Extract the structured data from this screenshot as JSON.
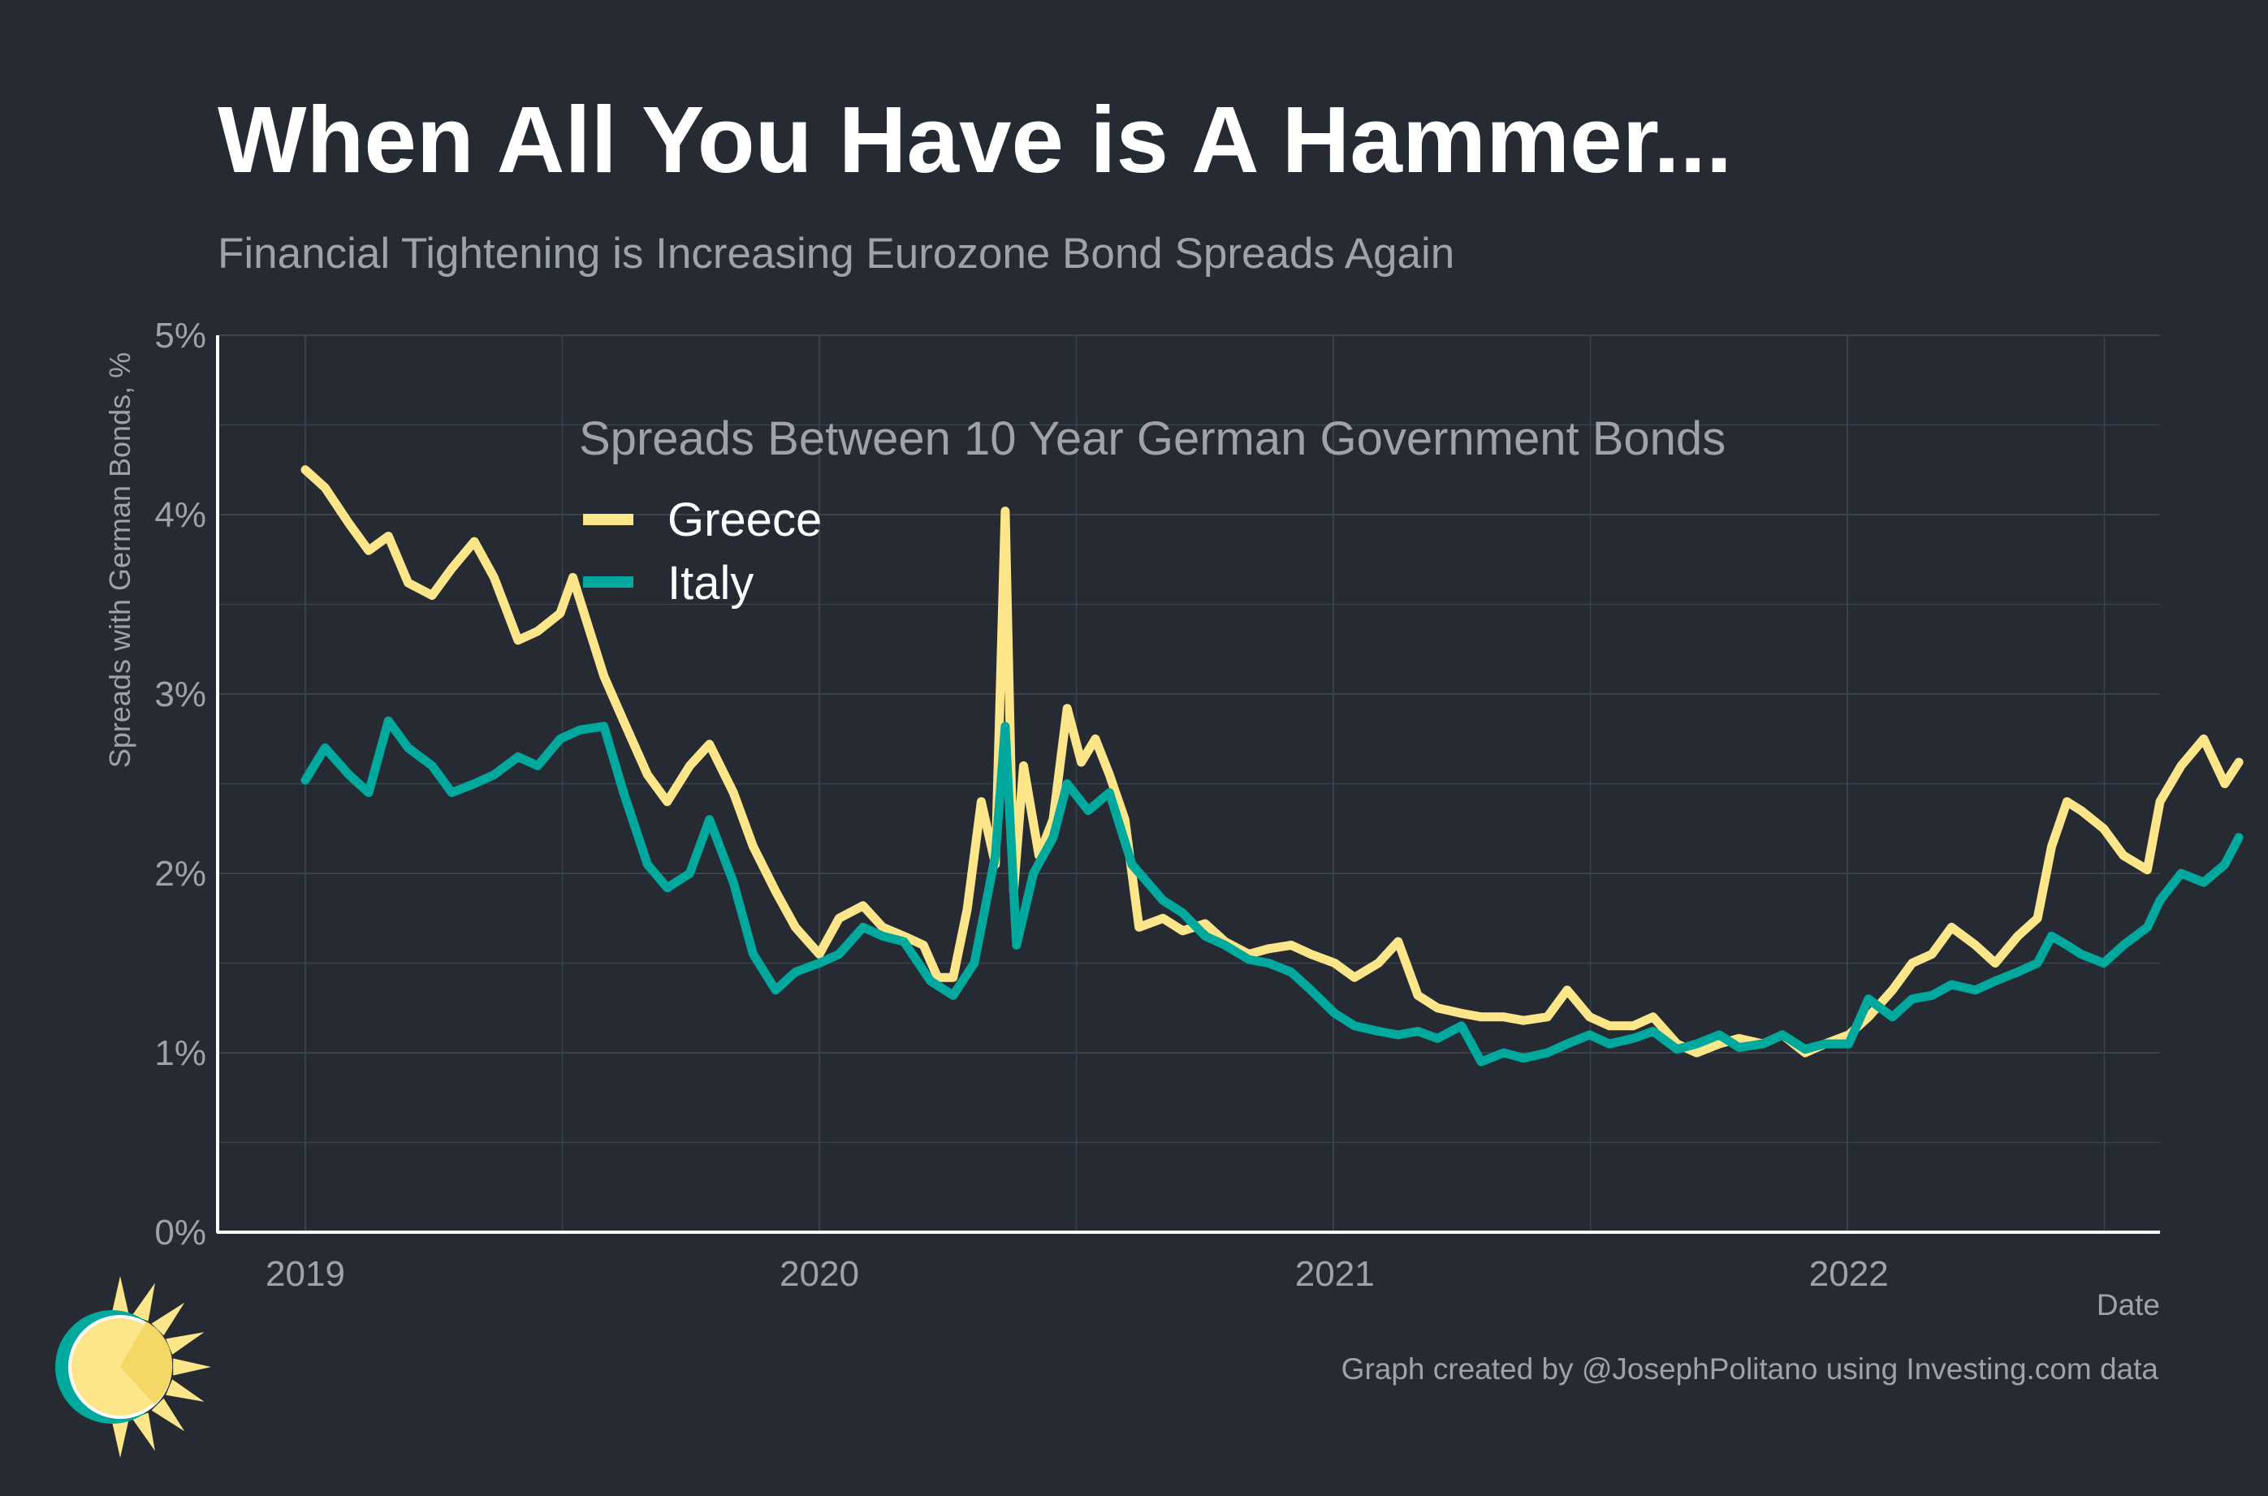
{
  "title": "When All You Have is A Hammer...",
  "subtitle": "Financial Tightening is Increasing Eurozone Bond Spreads Again",
  "credit": "Graph created by @JosephPolitano using Investing.com data",
  "colors": {
    "background": "#252a33",
    "grid": "#3c424c",
    "axis": "#ffffff",
    "muted_text": "#9ea3ab",
    "greece": "#fde68a",
    "italy": "#00a99d",
    "logo_sun": "#fde68a",
    "logo_ring": "#00a99d"
  },
  "logo": {
    "icon": "sun-logo-icon"
  },
  "chart_data": {
    "type": "line",
    "title": "",
    "xlabel": "Date",
    "ylabel": "Spreads with German Bonds, %",
    "ylim": [
      0,
      5
    ],
    "xlim": [
      "2018-11-14",
      "2022-08-16"
    ],
    "yticks": [
      0,
      1,
      2,
      3,
      4,
      5
    ],
    "ytick_labels": [
      "0%",
      "1%",
      "2%",
      "3%",
      "4%",
      "5%"
    ],
    "xticks": [
      "2019-01-01",
      "2020-01-01",
      "2021-01-01",
      "2022-01-01"
    ],
    "xtick_labels": [
      "2019",
      "2020",
      "2021",
      "2022"
    ],
    "grid": true,
    "legend": {
      "title": "Spreads Between 10 Year German Government Bonds",
      "position": "top-center",
      "entries": [
        "Greece",
        "Italy"
      ]
    },
    "series": [
      {
        "name": "Greece",
        "color": "#fde68a",
        "points": [
          [
            "2019-01-01",
            4.25
          ],
          [
            "2019-01-15",
            4.15
          ],
          [
            "2019-02-01",
            3.95
          ],
          [
            "2019-02-15",
            3.8
          ],
          [
            "2019-03-01",
            3.88
          ],
          [
            "2019-03-15",
            3.62
          ],
          [
            "2019-04-01",
            3.55
          ],
          [
            "2019-04-15",
            3.7
          ],
          [
            "2019-05-01",
            3.85
          ],
          [
            "2019-05-15",
            3.65
          ],
          [
            "2019-06-01",
            3.3
          ],
          [
            "2019-06-15",
            3.35
          ],
          [
            "2019-07-01",
            3.45
          ],
          [
            "2019-07-10",
            3.65
          ],
          [
            "2019-07-20",
            3.4
          ],
          [
            "2019-08-01",
            3.1
          ],
          [
            "2019-08-15",
            2.85
          ],
          [
            "2019-09-01",
            2.55
          ],
          [
            "2019-09-15",
            2.4
          ],
          [
            "2019-10-01",
            2.6
          ],
          [
            "2019-10-15",
            2.72
          ],
          [
            "2019-11-01",
            2.45
          ],
          [
            "2019-11-15",
            2.15
          ],
          [
            "2019-12-01",
            1.9
          ],
          [
            "2019-12-15",
            1.7
          ],
          [
            "2020-01-01",
            1.55
          ],
          [
            "2020-01-15",
            1.75
          ],
          [
            "2020-02-01",
            1.82
          ],
          [
            "2020-02-15",
            1.7
          ],
          [
            "2020-03-01",
            1.65
          ],
          [
            "2020-03-15",
            1.6
          ],
          [
            "2020-03-25",
            1.42
          ],
          [
            "2020-04-05",
            1.42
          ],
          [
            "2020-04-15",
            1.8
          ],
          [
            "2020-04-25",
            2.4
          ],
          [
            "2020-05-05",
            2.05
          ],
          [
            "2020-05-12",
            4.02
          ],
          [
            "2020-05-18",
            1.9
          ],
          [
            "2020-05-25",
            2.6
          ],
          [
            "2020-06-05",
            2.1
          ],
          [
            "2020-06-15",
            2.3
          ],
          [
            "2020-06-25",
            2.92
          ],
          [
            "2020-07-05",
            2.62
          ],
          [
            "2020-07-15",
            2.75
          ],
          [
            "2020-07-25",
            2.55
          ],
          [
            "2020-08-05",
            2.3
          ],
          [
            "2020-08-15",
            1.7
          ],
          [
            "2020-09-01",
            1.75
          ],
          [
            "2020-09-15",
            1.68
          ],
          [
            "2020-10-01",
            1.72
          ],
          [
            "2020-10-15",
            1.62
          ],
          [
            "2020-11-01",
            1.55
          ],
          [
            "2020-11-15",
            1.58
          ],
          [
            "2020-12-01",
            1.6
          ],
          [
            "2020-12-15",
            1.55
          ],
          [
            "2021-01-01",
            1.5
          ],
          [
            "2021-01-15",
            1.42
          ],
          [
            "2021-02-01",
            1.5
          ],
          [
            "2021-02-15",
            1.62
          ],
          [
            "2021-03-01",
            1.32
          ],
          [
            "2021-03-15",
            1.25
          ],
          [
            "2021-04-01",
            1.22
          ],
          [
            "2021-04-15",
            1.2
          ],
          [
            "2021-05-01",
            1.2
          ],
          [
            "2021-05-15",
            1.18
          ],
          [
            "2021-06-01",
            1.2
          ],
          [
            "2021-06-15",
            1.35
          ],
          [
            "2021-07-01",
            1.2
          ],
          [
            "2021-07-15",
            1.15
          ],
          [
            "2021-08-01",
            1.15
          ],
          [
            "2021-08-15",
            1.2
          ],
          [
            "2021-09-01",
            1.05
          ],
          [
            "2021-09-15",
            1.0
          ],
          [
            "2021-10-01",
            1.05
          ],
          [
            "2021-10-15",
            1.08
          ],
          [
            "2021-11-01",
            1.05
          ],
          [
            "2021-11-15",
            1.1
          ],
          [
            "2021-12-01",
            1.0
          ],
          [
            "2021-12-15",
            1.05
          ],
          [
            "2022-01-01",
            1.1
          ],
          [
            "2022-01-15",
            1.2
          ],
          [
            "2022-02-01",
            1.35
          ],
          [
            "2022-02-15",
            1.5
          ],
          [
            "2022-03-01",
            1.55
          ],
          [
            "2022-03-15",
            1.7
          ],
          [
            "2022-04-01",
            1.6
          ],
          [
            "2022-04-15",
            1.5
          ],
          [
            "2022-05-01",
            1.65
          ],
          [
            "2022-05-15",
            1.75
          ],
          [
            "2022-05-25",
            2.15
          ],
          [
            "2022-06-05",
            2.4
          ],
          [
            "2022-06-15",
            2.35
          ],
          [
            "2022-07-01",
            2.25
          ],
          [
            "2022-07-15",
            2.1
          ],
          [
            "2022-08-01",
            2.02
          ],
          [
            "2022-08-10",
            2.4
          ],
          [
            "2022-08-25",
            2.6
          ],
          [
            "2022-09-10",
            2.75
          ],
          [
            "2022-09-25",
            2.5
          ],
          [
            "2022-10-05",
            2.62
          ]
        ]
      },
      {
        "name": "Italy",
        "color": "#00a99d",
        "points": [
          [
            "2019-01-01",
            2.52
          ],
          [
            "2019-01-15",
            2.7
          ],
          [
            "2019-02-01",
            2.55
          ],
          [
            "2019-02-15",
            2.45
          ],
          [
            "2019-03-01",
            2.85
          ],
          [
            "2019-03-15",
            2.7
          ],
          [
            "2019-04-01",
            2.6
          ],
          [
            "2019-04-15",
            2.45
          ],
          [
            "2019-05-01",
            2.5
          ],
          [
            "2019-05-15",
            2.55
          ],
          [
            "2019-06-01",
            2.65
          ],
          [
            "2019-06-15",
            2.6
          ],
          [
            "2019-07-01",
            2.75
          ],
          [
            "2019-07-15",
            2.8
          ],
          [
            "2019-08-01",
            2.82
          ],
          [
            "2019-08-15",
            2.45
          ],
          [
            "2019-09-01",
            2.05
          ],
          [
            "2019-09-15",
            1.92
          ],
          [
            "2019-10-01",
            2.0
          ],
          [
            "2019-10-15",
            2.3
          ],
          [
            "2019-11-01",
            1.95
          ],
          [
            "2019-11-15",
            1.55
          ],
          [
            "2019-12-01",
            1.35
          ],
          [
            "2019-12-15",
            1.45
          ],
          [
            "2020-01-01",
            1.5
          ],
          [
            "2020-01-15",
            1.55
          ],
          [
            "2020-02-01",
            1.7
          ],
          [
            "2020-02-15",
            1.65
          ],
          [
            "2020-03-01",
            1.62
          ],
          [
            "2020-03-20",
            1.4
          ],
          [
            "2020-04-05",
            1.32
          ],
          [
            "2020-04-20",
            1.5
          ],
          [
            "2020-05-05",
            2.1
          ],
          [
            "2020-05-12",
            2.82
          ],
          [
            "2020-05-20",
            1.6
          ],
          [
            "2020-06-01",
            2.0
          ],
          [
            "2020-06-15",
            2.2
          ],
          [
            "2020-06-25",
            2.5
          ],
          [
            "2020-07-10",
            2.35
          ],
          [
            "2020-07-25",
            2.45
          ],
          [
            "2020-08-10",
            2.05
          ],
          [
            "2020-09-01",
            1.85
          ],
          [
            "2020-09-15",
            1.78
          ],
          [
            "2020-10-01",
            1.65
          ],
          [
            "2020-10-15",
            1.6
          ],
          [
            "2020-11-01",
            1.52
          ],
          [
            "2020-11-15",
            1.5
          ],
          [
            "2020-12-01",
            1.45
          ],
          [
            "2020-12-15",
            1.35
          ],
          [
            "2021-01-01",
            1.22
          ],
          [
            "2021-01-15",
            1.15
          ],
          [
            "2021-02-01",
            1.12
          ],
          [
            "2021-02-15",
            1.1
          ],
          [
            "2021-03-01",
            1.12
          ],
          [
            "2021-03-15",
            1.08
          ],
          [
            "2021-04-01",
            1.15
          ],
          [
            "2021-04-15",
            0.95
          ],
          [
            "2021-05-01",
            1.0
          ],
          [
            "2021-05-15",
            0.97
          ],
          [
            "2021-06-01",
            1.0
          ],
          [
            "2021-06-15",
            1.05
          ],
          [
            "2021-07-01",
            1.1
          ],
          [
            "2021-07-15",
            1.05
          ],
          [
            "2021-08-01",
            1.08
          ],
          [
            "2021-08-15",
            1.12
          ],
          [
            "2021-09-01",
            1.02
          ],
          [
            "2021-09-15",
            1.05
          ],
          [
            "2021-10-01",
            1.1
          ],
          [
            "2021-10-15",
            1.03
          ],
          [
            "2021-11-01",
            1.05
          ],
          [
            "2021-11-15",
            1.1
          ],
          [
            "2021-12-01",
            1.02
          ],
          [
            "2021-12-15",
            1.05
          ],
          [
            "2022-01-01",
            1.05
          ],
          [
            "2022-01-15",
            1.3
          ],
          [
            "2022-02-01",
            1.2
          ],
          [
            "2022-02-15",
            1.3
          ],
          [
            "2022-03-01",
            1.32
          ],
          [
            "2022-03-15",
            1.38
          ],
          [
            "2022-04-01",
            1.35
          ],
          [
            "2022-04-15",
            1.4
          ],
          [
            "2022-05-01",
            1.45
          ],
          [
            "2022-05-15",
            1.5
          ],
          [
            "2022-05-25",
            1.65
          ],
          [
            "2022-06-05",
            1.6
          ],
          [
            "2022-06-15",
            1.55
          ],
          [
            "2022-07-01",
            1.5
          ],
          [
            "2022-07-15",
            1.6
          ],
          [
            "2022-08-01",
            1.7
          ],
          [
            "2022-08-10",
            1.85
          ],
          [
            "2022-08-25",
            2.0
          ],
          [
            "2022-09-10",
            1.95
          ],
          [
            "2022-09-25",
            2.05
          ],
          [
            "2022-10-05",
            2.2
          ]
        ]
      }
    ]
  }
}
